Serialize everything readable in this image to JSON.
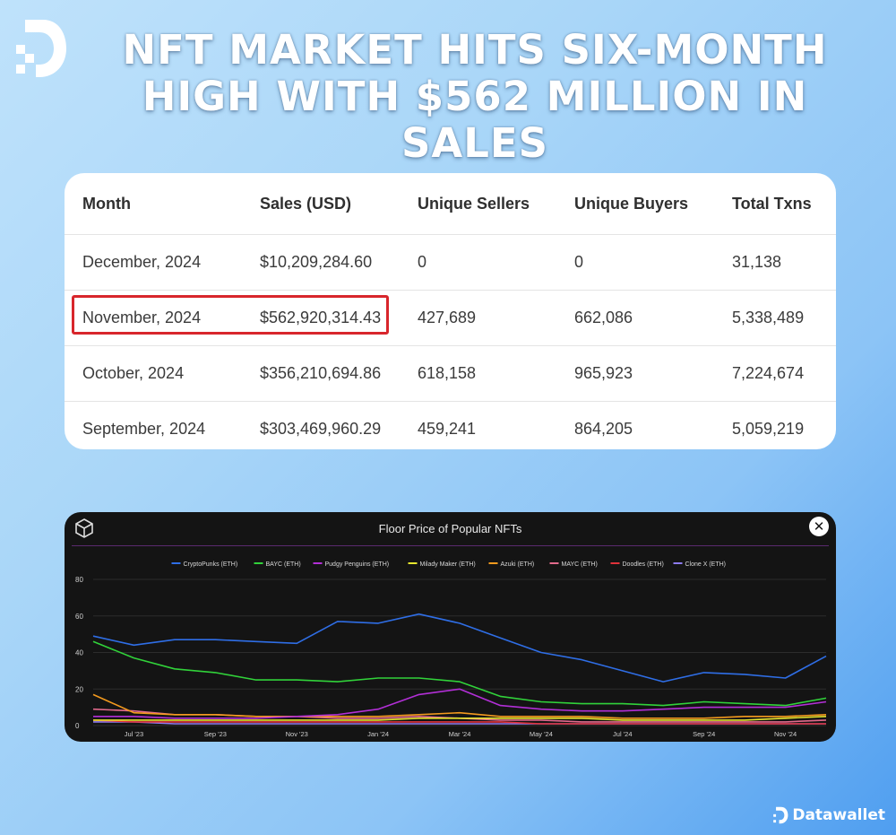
{
  "headline": {
    "line1": "NFT MARKET HITS SIX-MONTH",
    "line2": "HIGH WITH $562 MILLION IN SALES"
  },
  "table": {
    "headers": [
      "Month",
      "Sales (USD)",
      "Unique Sellers",
      "Unique Buyers",
      "Total Txns"
    ],
    "rows": [
      [
        "December, 2024",
        "$10,209,284.60",
        "0",
        "0",
        "31,138"
      ],
      [
        "November, 2024",
        "$562,920,314.43",
        "427,689",
        "662,086",
        "5,338,489"
      ],
      [
        "October, 2024",
        "$356,210,694.86",
        "618,158",
        "965,923",
        "7,224,674"
      ],
      [
        "September, 2024",
        "$303,469,960.29",
        "459,241",
        "864,205",
        "5,059,219"
      ]
    ],
    "highlight_color": "#d8262c"
  },
  "chart_data": {
    "type": "line",
    "title": "Floor Price of Popular NFTs",
    "xlabel": "",
    "ylabel": "",
    "ylim": [
      0,
      80
    ],
    "yticks": [
      "0",
      "20",
      "40",
      "60",
      "80"
    ],
    "xticks": [
      "Jul '23",
      "Sep '23",
      "Nov '23",
      "Jan '24",
      "Mar '24",
      "May '24",
      "Jul '24",
      "Sep '24",
      "Nov '24"
    ],
    "x": [
      "Jun '23",
      "Jul '23",
      "Aug '23",
      "Sep '23",
      "Oct '23",
      "Nov '23",
      "Dec '23",
      "Jan '24",
      "Feb '24",
      "Mar '24",
      "Apr '24",
      "May '24",
      "Jun '24",
      "Jul '24",
      "Aug '24",
      "Sep '24",
      "Oct '24",
      "Nov '24",
      "Dec '24"
    ],
    "grid": true,
    "legend_position": "top",
    "series": [
      {
        "name": "CryptoPunks (ETH)",
        "color": "#2f6ee6",
        "values": [
          49,
          44,
          47,
          47,
          46,
          45,
          57,
          56,
          61,
          56,
          48,
          40,
          36,
          30,
          24,
          29,
          28,
          26,
          38
        ]
      },
      {
        "name": "BAYC (ETH)",
        "color": "#31d23a",
        "values": [
          46,
          37,
          31,
          29,
          25,
          25,
          24,
          26,
          26,
          24,
          16,
          13,
          12,
          12,
          11,
          13,
          12,
          11,
          15
        ]
      },
      {
        "name": "Pudgy Penguins (ETH)",
        "color": "#b22fd6",
        "values": [
          5,
          5,
          4,
          4,
          4,
          5,
          6,
          9,
          17,
          20,
          11,
          9,
          8,
          8,
          9,
          10,
          10,
          10,
          13
        ]
      },
      {
        "name": "Milady Maker (ETH)",
        "color": "#e6e62e",
        "values": [
          3,
          3,
          3,
          3,
          3,
          3,
          3,
          3,
          4,
          4,
          4,
          4,
          4,
          3,
          3,
          3,
          3,
          4,
          5
        ]
      },
      {
        "name": "Azuki (ETH)",
        "color": "#f39a1e",
        "values": [
          17,
          7,
          6,
          6,
          5,
          5,
          5,
          5,
          6,
          7,
          5,
          5,
          5,
          4,
          4,
          4,
          5,
          5,
          6
        ]
      },
      {
        "name": "MAYC (ETH)",
        "color": "#e16a8c",
        "values": [
          9,
          8,
          6,
          6,
          5,
          5,
          4,
          4,
          5,
          4,
          3,
          3,
          2,
          2,
          2,
          2,
          2,
          2,
          3
        ]
      },
      {
        "name": "Doodles (ETH)",
        "color": "#e0323a",
        "values": [
          3,
          2,
          2,
          2,
          2,
          2,
          2,
          2,
          2,
          2,
          2,
          1,
          1,
          1,
          1,
          1,
          1,
          1,
          1
        ]
      },
      {
        "name": "Clone X (ETH)",
        "color": "#8d7bf0",
        "values": [
          2,
          2,
          1,
          1,
          1,
          1,
          1,
          1,
          1,
          1,
          1,
          1,
          1,
          1,
          1,
          1,
          1,
          1,
          1
        ]
      }
    ]
  },
  "brand": {
    "name": "Datawallet"
  },
  "icons": {
    "logo": "datawallet-logo-icon",
    "chart": "cube-icon",
    "close": "close-icon"
  }
}
